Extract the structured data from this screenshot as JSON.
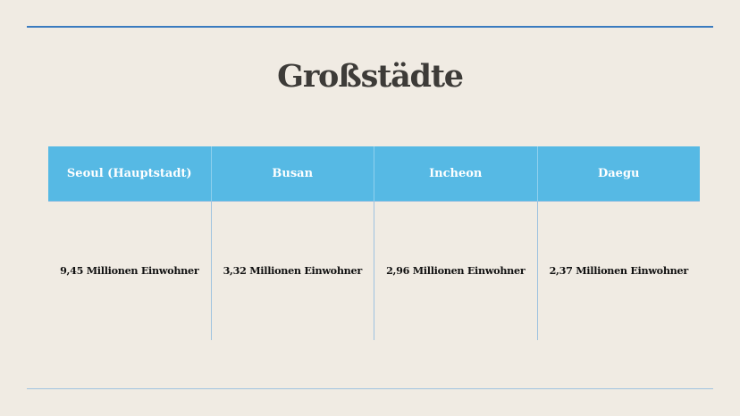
{
  "slide": {
    "title": "Großstädte"
  },
  "table": {
    "headers": [
      "Seoul (Hauptstadt)",
      "Busan",
      "Incheon",
      "Daegu"
    ],
    "values": [
      "9,45 Millionen Einwohner",
      "3,32 Millionen Einwohner",
      "2,96 Millionen Einwohner",
      "2,37 Millionen Einwohner"
    ]
  },
  "colors": {
    "background": "#f0ebe3",
    "header_fill": "#56b9e4",
    "accent_rule": "#3a7bbf"
  }
}
